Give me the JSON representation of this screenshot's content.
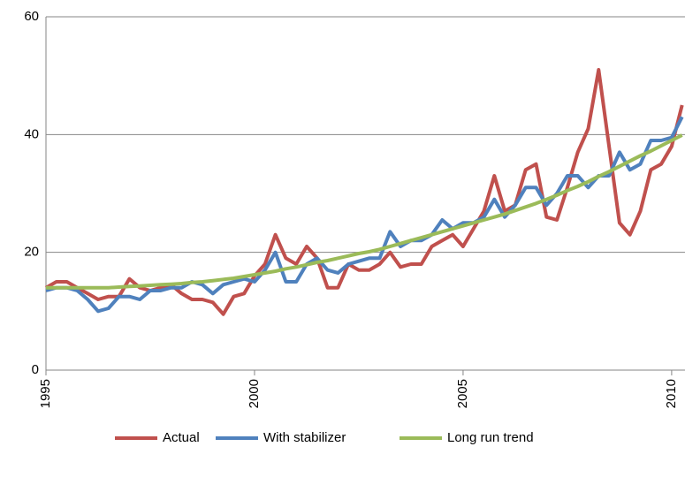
{
  "chart_data": {
    "type": "line",
    "x": [
      1995,
      1995.25,
      1995.5,
      1995.75,
      1996,
      1996.25,
      1996.5,
      1996.75,
      1997,
      1997.25,
      1997.5,
      1997.75,
      1998,
      1998.25,
      1998.5,
      1998.75,
      1999,
      1999.25,
      1999.5,
      1999.75,
      2000,
      2000.25,
      2000.5,
      2000.75,
      2001,
      2001.25,
      2001.5,
      2001.75,
      2002,
      2002.25,
      2002.5,
      2002.75,
      2003,
      2003.25,
      2003.5,
      2003.75,
      2004,
      2004.25,
      2004.5,
      2004.75,
      2005,
      2005.25,
      2005.5,
      2005.75,
      2006,
      2006.25,
      2006.5,
      2006.75,
      2007,
      2007.25,
      2007.5,
      2007.75,
      2008,
      2008.25,
      2008.5,
      2008.75,
      2009,
      2009.25,
      2009.5,
      2009.75,
      2010,
      2010.25
    ],
    "series": [
      {
        "name": "Actual",
        "color": "#c0504d",
        "values": [
          14,
          15,
          15,
          14,
          13,
          12,
          12.5,
          12.5,
          15.5,
          14,
          13.5,
          14,
          14.5,
          13,
          12,
          12,
          11.5,
          9.5,
          12.5,
          13,
          16,
          18,
          23,
          19,
          18,
          21,
          19,
          14,
          14,
          18,
          17,
          17,
          18,
          20,
          17.5,
          18,
          18,
          21,
          22,
          23,
          21,
          24,
          27,
          33,
          27,
          28,
          34,
          35,
          26,
          25.5,
          31,
          37,
          41,
          51,
          38,
          25,
          23,
          27,
          34,
          35,
          38,
          45
        ]
      },
      {
        "name": "With stabilizer",
        "color": "#4f81bd",
        "values": [
          13.5,
          14,
          14,
          13.5,
          12,
          10,
          10.5,
          12.5,
          12.5,
          12,
          13.5,
          13.5,
          14,
          14,
          15,
          14.5,
          13,
          14.5,
          15,
          15.5,
          15,
          17,
          20,
          15,
          15,
          18,
          19,
          17,
          16.5,
          18,
          18.5,
          19,
          19,
          23.5,
          21,
          22,
          22,
          23,
          25.5,
          24,
          25,
          25,
          26,
          29,
          26,
          28,
          31,
          31,
          28,
          30,
          33,
          33,
          31,
          33,
          33,
          37,
          34,
          35,
          39,
          39,
          39.5,
          43
        ]
      },
      {
        "name": "Long run trend",
        "color": "#9bbb59",
        "values": [
          14,
          14,
          14,
          14,
          14,
          14,
          14,
          14.1,
          14.2,
          14.3,
          14.4,
          14.5,
          14.6,
          14.7,
          14.9,
          15,
          15.2,
          15.4,
          15.6,
          15.9,
          16.2,
          16.5,
          16.8,
          17.2,
          17.5,
          17.9,
          18.3,
          18.6,
          19,
          19.4,
          19.8,
          20.1,
          20.5,
          21,
          21.5,
          22,
          22.5,
          23,
          23.5,
          24,
          24.5,
          25,
          25.5,
          26,
          26.5,
          27.1,
          27.7,
          28.3,
          29,
          29.7,
          30.5,
          31.2,
          32,
          32.9,
          33.7,
          34.6,
          35.5,
          36.4,
          37.2,
          38.1,
          39,
          39.9
        ]
      }
    ],
    "xlim": [
      1995,
      2010.32
    ],
    "xticks": [
      1995,
      2000,
      2005,
      2010
    ],
    "ylim": [
      0,
      60
    ],
    "yticks": [
      0,
      20,
      40,
      60
    ],
    "grid": true,
    "legend": "bottom"
  }
}
